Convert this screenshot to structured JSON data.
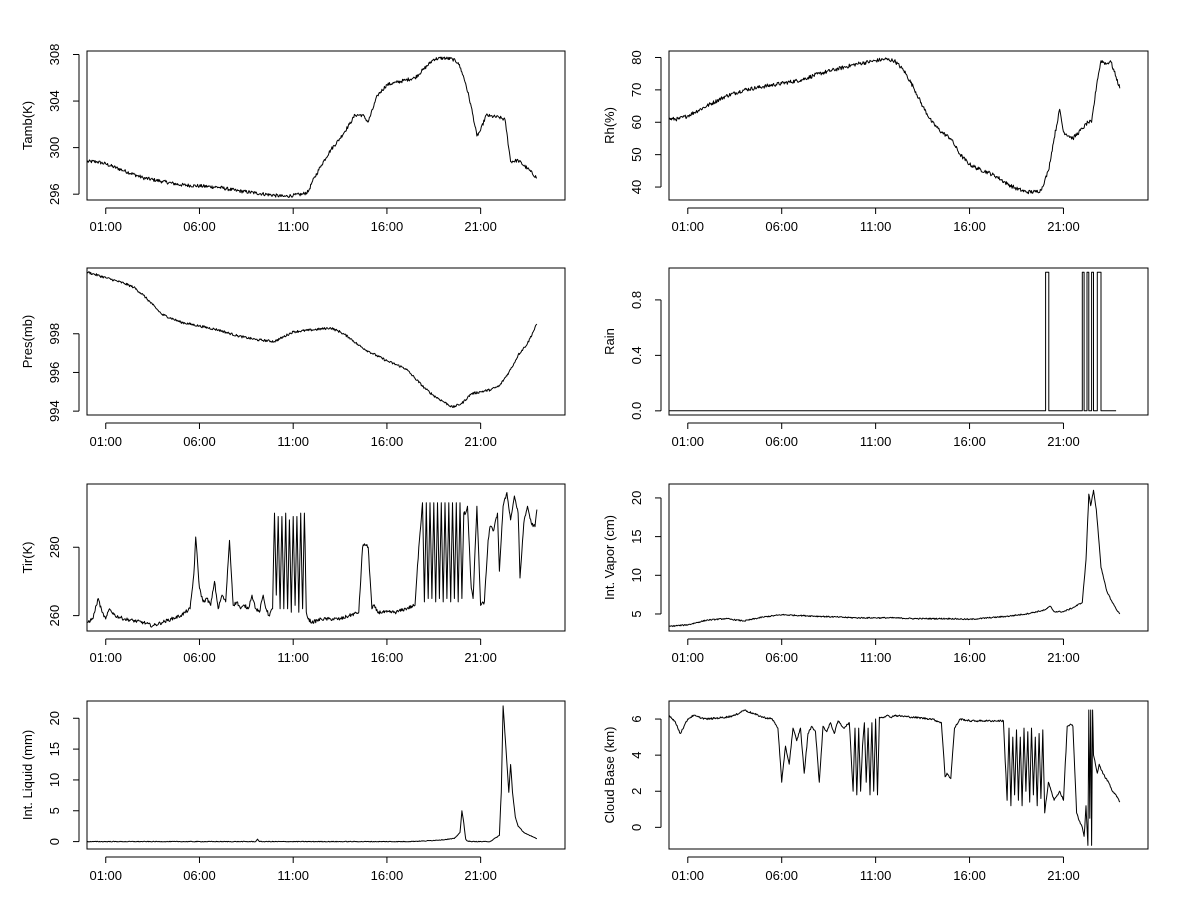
{
  "figure": {
    "x_tick_labels": [
      "01:00",
      "06:00",
      "11:00",
      "16:00",
      "21:00"
    ],
    "x_tick_hours": [
      1,
      6,
      11,
      16,
      21
    ],
    "x_range_hours": [
      0,
      25.5
    ],
    "line_color": "#000000"
  },
  "chart_data": [
    {
      "id": "tamb",
      "type": "line",
      "ylabel": "Tamb(K)",
      "ylim": [
        295.5,
        308.3
      ],
      "yticks": [
        296,
        300,
        304,
        308
      ],
      "ytick_labels": [
        "296",
        "300",
        "304",
        "308"
      ],
      "x_hours": [
        0.0,
        0.5,
        1,
        2,
        3,
        4,
        5,
        6,
        7,
        8,
        9,
        10,
        10.5,
        11,
        11.5,
        11.8,
        12,
        12.5,
        13,
        13.5,
        14,
        14.3,
        14.7,
        15,
        15.5,
        16,
        16.5,
        17,
        17.5,
        18,
        18.5,
        19,
        19.5,
        19.8,
        20,
        20.2,
        20.5,
        20.8,
        21,
        21.3,
        21.5,
        22,
        22.3,
        22.6,
        23,
        23.5,
        24.0
      ],
      "y": [
        298.8,
        298.8,
        298.6,
        298.0,
        297.4,
        297.1,
        296.8,
        296.7,
        296.6,
        296.3,
        296.1,
        295.9,
        295.8,
        295.9,
        296.0,
        296.2,
        297.0,
        298.5,
        299.8,
        300.8,
        302.0,
        302.8,
        302.8,
        302.2,
        304.5,
        305.4,
        305.6,
        305.8,
        306.0,
        306.8,
        307.6,
        307.7,
        307.6,
        307.3,
        306.5,
        305.5,
        303.5,
        301.0,
        301.5,
        302.8,
        302.7,
        302.6,
        302.4,
        298.8,
        298.9,
        298.2,
        297.4
      ],
      "noise": 0.15
    },
    {
      "id": "rh",
      "type": "line",
      "ylabel": "Rh(%)",
      "ylim": [
        36,
        82
      ],
      "yticks": [
        40,
        50,
        60,
        70,
        80
      ],
      "ytick_labels": [
        "40",
        "50",
        "60",
        "70",
        "80"
      ],
      "x_hours": [
        0.0,
        0.5,
        1,
        2,
        3,
        4,
        5,
        6,
        7,
        8,
        9,
        10,
        11,
        11.5,
        12,
        12.5,
        13,
        13.5,
        14,
        14.5,
        15,
        15.5,
        16,
        16.5,
        17,
        17.5,
        18,
        18.5,
        19,
        19.5,
        19.8,
        20,
        20.2,
        20.5,
        20.8,
        21.0,
        21.5,
        22,
        22.3,
        22.5,
        22.8,
        23,
        23.3,
        23.5,
        23.8,
        24.0
      ],
      "y": [
        61,
        61,
        62,
        65,
        68,
        70,
        71,
        72,
        73,
        75,
        76.5,
        78,
        79,
        79.5,
        79,
        76,
        71,
        65,
        60,
        57,
        55,
        50,
        47,
        45.5,
        44.5,
        43,
        41,
        39.5,
        38.5,
        38.5,
        39,
        42,
        45,
        55,
        64,
        57,
        55,
        58,
        60,
        60,
        73,
        79,
        78,
        79,
        74,
        70.5
      ],
      "noise": 0.6
    },
    {
      "id": "pres",
      "type": "line",
      "ylabel": "Pres(mb)",
      "ylim": [
        993.8,
        1001.4
      ],
      "yticks": [
        994,
        996,
        998
      ],
      "ytick_labels": [
        "994",
        "996",
        "998"
      ],
      "x_hours": [
        0.0,
        0.3,
        1,
        2,
        2.5,
        3,
        3.5,
        4,
        5,
        6,
        7,
        8,
        9,
        10,
        11,
        12,
        13,
        13.5,
        14,
        14.5,
        15,
        16,
        17,
        17.5,
        18,
        18.5,
        19,
        19.5,
        20,
        20.5,
        21,
        21.5,
        22,
        22.5,
        22.8,
        23,
        23.5,
        24.0
      ],
      "y": [
        1001.2,
        1001.1,
        1000.9,
        1000.6,
        1000.4,
        1000.0,
        999.5,
        999.0,
        998.6,
        998.4,
        998.2,
        997.9,
        997.7,
        997.6,
        998.1,
        998.2,
        998.3,
        998.1,
        997.8,
        997.4,
        997.1,
        996.6,
        996.2,
        995.7,
        995.2,
        994.8,
        994.5,
        994.2,
        994.4,
        994.9,
        995.0,
        995.1,
        995.3,
        996.0,
        996.5,
        996.9,
        997.5,
        998.5
      ],
      "noise": 0.06
    },
    {
      "id": "rain",
      "type": "line",
      "ylabel": "Rain",
      "ylim": [
        -0.03,
        1.03
      ],
      "yticks": [
        0.0,
        0.4,
        0.8
      ],
      "ytick_labels": [
        "0.0",
        "0.4",
        "0.8"
      ],
      "x_hours": [
        0.0,
        20.05,
        20.05,
        20.22,
        20.22,
        22.0,
        22.0,
        22.1,
        22.1,
        22.25,
        22.25,
        22.35,
        22.35,
        22.5,
        22.5,
        22.6,
        22.6,
        22.8,
        22.8,
        23.0,
        23.0,
        23.8
      ],
      "y": [
        0,
        0,
        1,
        1,
        0,
        0,
        1,
        1,
        0,
        0,
        1,
        1,
        0,
        0,
        1,
        1,
        0,
        0,
        1,
        1,
        0,
        0
      ],
      "noise": 0
    },
    {
      "id": "tir",
      "type": "line",
      "ylabel": "Tir(K)",
      "ylim": [
        255.5,
        298.5
      ],
      "yticks": [
        260,
        280
      ],
      "ytick_labels": [
        "260",
        "280"
      ],
      "x_hours": [
        0.0,
        0.3,
        0.5,
        0.6,
        0.8,
        1,
        1.2,
        1.5,
        2,
        3,
        3.5,
        4,
        4.5,
        5,
        5.5,
        5.7,
        5.8,
        6,
        6.2,
        6.4,
        6.6,
        6.8,
        7,
        7.2,
        7.4,
        7.6,
        7.8,
        8,
        8.2,
        8.4,
        8.6,
        8.8,
        9,
        9.2,
        9.4,
        9.5,
        9.7,
        9.9,
        10.0,
        10.1,
        10.2,
        10.3,
        10.4,
        10.5,
        10.6,
        10.7,
        10.8,
        10.9,
        11.0,
        11.1,
        11.2,
        11.3,
        11.4,
        11.5,
        11.6,
        11.7,
        11.8,
        12,
        12.5,
        13,
        13.5,
        14,
        14.5,
        14.7,
        14.8,
        15.0,
        15.2,
        15.3,
        15.5,
        16,
        16.5,
        17,
        17.5,
        17.7,
        17.9,
        18.0,
        18.1,
        18.2,
        18.3,
        18.4,
        18.5,
        18.6,
        18.7,
        18.8,
        18.9,
        19.0,
        19.1,
        19.2,
        19.3,
        19.4,
        19.5,
        19.6,
        19.7,
        19.8,
        19.9,
        20.0,
        20.1,
        20.2,
        20.3,
        20.5,
        20.6,
        20.8,
        21.0,
        21.2,
        21.4,
        21.5,
        21.7,
        21.9,
        22.0,
        22.2,
        22.4,
        22.6,
        22.8,
        23.0,
        23.1,
        23.3,
        23.5,
        23.7,
        23.9,
        24.0
      ],
      "y": [
        258,
        259,
        263,
        265,
        261,
        259,
        262,
        260,
        259,
        258,
        257,
        258,
        259,
        260,
        262,
        272,
        283,
        268,
        264,
        265,
        263,
        270,
        262,
        266,
        264,
        282,
        263,
        264,
        262,
        263,
        262,
        266,
        262,
        261,
        266,
        263,
        260,
        262,
        290,
        266,
        289,
        262,
        289,
        262,
        290,
        262,
        288,
        261,
        289,
        263,
        289,
        261,
        290,
        262,
        290,
        261,
        259,
        258,
        259,
        259,
        259,
        260,
        261,
        280,
        281,
        280,
        262,
        263,
        261,
        261,
        261,
        262,
        263,
        280,
        293,
        264,
        293,
        265,
        293,
        265,
        293,
        264,
        293,
        265,
        293,
        264,
        293,
        265,
        293,
        264,
        293,
        265,
        293,
        264,
        293,
        265,
        290,
        290,
        292,
        268,
        265,
        292,
        263,
        264,
        282,
        286,
        285,
        290,
        273,
        292,
        296,
        288,
        295,
        290,
        271,
        287,
        292,
        287,
        286,
        291
      ],
      "noise": 0.5
    },
    {
      "id": "vapor",
      "type": "line",
      "ylabel": "Int. Vapor (cm)",
      "ylim": [
        2.8,
        21.8
      ],
      "yticks": [
        5,
        10,
        15,
        20
      ],
      "ytick_labels": [
        "5",
        "10",
        "15",
        "20"
      ],
      "x_hours": [
        0.0,
        1,
        2,
        3,
        4,
        5,
        6,
        7,
        8,
        9,
        10,
        11,
        12,
        13,
        14,
        15,
        16,
        17,
        18,
        19,
        20,
        20.3,
        20.5,
        21,
        21.5,
        22,
        22.2,
        22.35,
        22.45,
        22.6,
        22.75,
        22.9,
        23.0,
        23.3,
        23.6,
        23.9,
        24.0
      ],
      "y": [
        3.4,
        3.6,
        4.2,
        4.4,
        4.1,
        4.6,
        4.9,
        4.8,
        4.7,
        4.6,
        4.5,
        4.5,
        4.5,
        4.4,
        4.4,
        4.4,
        4.3,
        4.5,
        4.7,
        5.0,
        5.5,
        6.0,
        5.3,
        5.3,
        5.8,
        6.5,
        12.0,
        20.5,
        19.0,
        21.0,
        18.5,
        14.0,
        11.0,
        8.0,
        6.5,
        5.3,
        5.0
      ],
      "noise": 0.08
    },
    {
      "id": "liquid",
      "type": "line",
      "ylabel": "Int. Liquid (mm)",
      "ylim": [
        -1.2,
        22.8
      ],
      "yticks": [
        0,
        5,
        10,
        15,
        20
      ],
      "ytick_labels": [
        "0",
        "5",
        "10",
        "15",
        "20"
      ],
      "x_hours": [
        0.0,
        9.0,
        9.1,
        9.2,
        17,
        18,
        19,
        19.6,
        19.9,
        20.0,
        20.1,
        20.2,
        20.3,
        20.5,
        21.5,
        22.0,
        22.1,
        22.2,
        22.35,
        22.5,
        22.6,
        22.7,
        22.85,
        23.0,
        23.3,
        23.6,
        24.0
      ],
      "y": [
        0,
        0,
        0.4,
        0,
        0,
        0.1,
        0.3,
        0.5,
        1.5,
        5.0,
        3.0,
        0.4,
        0.1,
        0,
        0,
        1.0,
        8.0,
        22.0,
        15.0,
        8.0,
        12.5,
        8.0,
        4.0,
        2.5,
        1.5,
        1.0,
        0.5
      ],
      "noise": 0.05
    },
    {
      "id": "cloudbase",
      "type": "line",
      "ylabel": "Cloud Base (km)",
      "ylim": [
        -1.2,
        7.0
      ],
      "yticks": [
        0,
        2,
        4,
        6
      ],
      "ytick_labels": [
        "0",
        "2",
        "4",
        "6"
      ],
      "x_hours": [
        0.0,
        0.3,
        0.6,
        0.8,
        1.0,
        1.3,
        1.6,
        2,
        3,
        3.5,
        4,
        4.5,
        5,
        5.5,
        5.8,
        6.0,
        6.2,
        6.4,
        6.6,
        6.8,
        7.0,
        7.2,
        7.4,
        7.6,
        7.8,
        8.0,
        8.2,
        8.4,
        8.6,
        8.8,
        9.0,
        9.3,
        9.6,
        9.8,
        9.9,
        10.0,
        10.1,
        10.2,
        10.3,
        10.4,
        10.5,
        10.6,
        10.7,
        10.8,
        10.9,
        11.0,
        11.1,
        11.2,
        11.4,
        11.6,
        11.8,
        12,
        13,
        14,
        14.5,
        14.7,
        14.8,
        15.0,
        15.2,
        15.5,
        16,
        16.5,
        17,
        17.5,
        17.8,
        18.0,
        18.1,
        18.2,
        18.3,
        18.4,
        18.5,
        18.6,
        18.7,
        18.8,
        18.9,
        19.0,
        19.1,
        19.2,
        19.3,
        19.4,
        19.5,
        19.6,
        19.7,
        19.8,
        19.9,
        20.0,
        20.2,
        20.5,
        20.8,
        21.0,
        21.2,
        21.4,
        21.5,
        21.7,
        21.9,
        22.0,
        22.1,
        22.2,
        22.3,
        22.35,
        22.4,
        22.45,
        22.5,
        22.55,
        22.6,
        22.7,
        22.8,
        22.9,
        23.0,
        23.2,
        23.4,
        23.6,
        23.8,
        24.0
      ],
      "y": [
        6.2,
        5.9,
        5.2,
        5.6,
        6.0,
        6.2,
        6.1,
        6.0,
        6.1,
        6.2,
        6.5,
        6.3,
        6.1,
        6.0,
        5.5,
        2.5,
        4.5,
        3.5,
        5.5,
        4.8,
        5.5,
        3.0,
        5.2,
        5.6,
        5.3,
        2.5,
        5.6,
        5.3,
        5.8,
        5.2,
        5.9,
        5.5,
        5.8,
        2.0,
        5.5,
        1.8,
        5.5,
        2.0,
        4.5,
        5.8,
        2.5,
        5.5,
        1.8,
        5.8,
        2.0,
        6.0,
        1.8,
        6.1,
        6.1,
        6.2,
        6.1,
        6.2,
        6.1,
        6.0,
        5.8,
        2.8,
        3.0,
        2.7,
        5.5,
        6.0,
        5.9,
        5.9,
        5.9,
        5.9,
        5.9,
        1.5,
        5.5,
        1.2,
        5.0,
        1.8,
        5.4,
        1.5,
        5.0,
        1.2,
        5.5,
        2.0,
        5.3,
        1.4,
        5.5,
        1.8,
        5.0,
        1.2,
        5.2,
        1.6,
        5.4,
        0.8,
        2.5,
        1.5,
        2.0,
        1.5,
        5.6,
        5.7,
        5.6,
        0.8,
        0.2,
        0.0,
        -0.5,
        1.2,
        -1.0,
        6.5,
        0.5,
        6.5,
        -1.0,
        6.5,
        4.0,
        3.5,
        3.0,
        3.5,
        3.2,
        2.8,
        2.5,
        2.0,
        1.8,
        1.4
      ],
      "noise": 0.05
    }
  ]
}
